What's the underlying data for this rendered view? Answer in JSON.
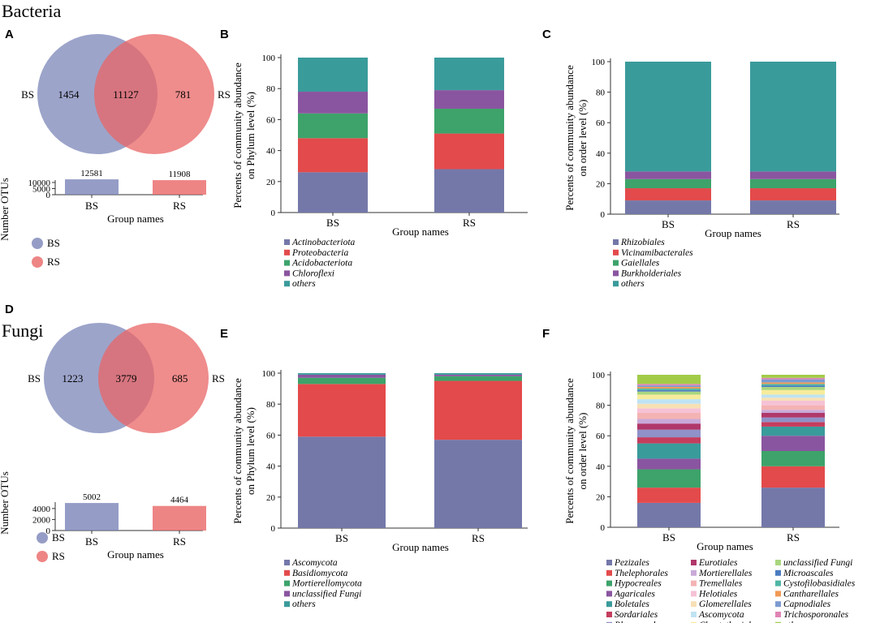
{
  "sections": {
    "bacteria": "Bacteria",
    "fungi": "Fungi"
  },
  "panels": {
    "A": "A",
    "B": "B",
    "C": "C",
    "D": "D",
    "E": "E",
    "F": "F"
  },
  "colors": {
    "BS": "#7b85b8",
    "RS": "#ea6666"
  },
  "chart_data": [
    {
      "panel": "A",
      "type": "venn_bar",
      "groups": [
        "BS",
        "RS"
      ],
      "venn": {
        "only_left": 1454,
        "shared": 11127,
        "only_right": 781
      },
      "bar": {
        "categories": [
          "BS",
          "RS"
        ],
        "values": [
          12581,
          11908
        ],
        "yticks": [
          0,
          5000,
          10000
        ],
        "ylim": [
          0,
          13000
        ]
      },
      "ylabel": "Number OTUs",
      "xlabel": "Group names",
      "legend": [
        "BS",
        "RS"
      ]
    },
    {
      "panel": "B",
      "type": "bar",
      "stacked": true,
      "categories": [
        "BS",
        "RS"
      ],
      "series": [
        {
          "name": "Actinobacteriota",
          "color": "#7478a9",
          "values": [
            26,
            28
          ]
        },
        {
          "name": "Proteobacteria",
          "color": "#e34a4b",
          "values": [
            22,
            23
          ]
        },
        {
          "name": "Acidobacteriota",
          "color": "#3da36a",
          "values": [
            16,
            16
          ]
        },
        {
          "name": "Chloroflexi",
          "color": "#8a55a0",
          "values": [
            14,
            12
          ]
        },
        {
          "name": "others",
          "color": "#3a9b9b",
          "values": [
            22,
            21
          ]
        }
      ],
      "ylabel": "Percents of community abundance on Phylum level (%)",
      "xlabel": "Group names",
      "ylim": [
        0,
        100
      ],
      "yticks": [
        0,
        20,
        40,
        60,
        80,
        100
      ]
    },
    {
      "panel": "C",
      "type": "bar",
      "stacked": true,
      "categories": [
        "BS",
        "RS"
      ],
      "series": [
        {
          "name": "Rhizobiales",
          "color": "#7478a9",
          "values": [
            9,
            9
          ]
        },
        {
          "name": "Vicinamibacterales",
          "color": "#e34a4b",
          "values": [
            8,
            8
          ]
        },
        {
          "name": "Gaiellales",
          "color": "#3da36a",
          "values": [
            6,
            6
          ]
        },
        {
          "name": "Burkholderiales",
          "color": "#8a55a0",
          "values": [
            5,
            5
          ]
        },
        {
          "name": "others",
          "color": "#3a9b9b",
          "values": [
            72,
            72
          ]
        }
      ],
      "ylabel": "Percents of community abundance on order level (%)",
      "xlabel": "Group names",
      "ylim": [
        0,
        100
      ],
      "yticks": [
        0,
        20,
        40,
        60,
        80,
        100
      ]
    },
    {
      "panel": "D",
      "type": "venn_bar",
      "groups": [
        "BS",
        "RS"
      ],
      "venn": {
        "only_left": 1223,
        "shared": 3779,
        "only_right": 685
      },
      "bar": {
        "categories": [
          "BS",
          "RS"
        ],
        "values": [
          5002,
          4464
        ],
        "yticks": [
          0,
          2000,
          4000
        ],
        "ylim": [
          0,
          5600
        ]
      },
      "ylabel": "Number OTUs",
      "xlabel": "Group names",
      "legend": [
        "BS",
        "RS"
      ]
    },
    {
      "panel": "E",
      "type": "bar",
      "stacked": true,
      "categories": [
        "BS",
        "RS"
      ],
      "series": [
        {
          "name": "Ascomycota",
          "color": "#7478a9",
          "values": [
            59,
            57
          ]
        },
        {
          "name": "Basidiomycota",
          "color": "#e34a4b",
          "values": [
            34,
            38
          ]
        },
        {
          "name": "Mortierellomycota",
          "color": "#3da36a",
          "values": [
            4,
            3
          ]
        },
        {
          "name": "unclassified Fungi",
          "color": "#8a55a0",
          "values": [
            2,
            1
          ]
        },
        {
          "name": "others",
          "color": "#3a9b9b",
          "values": [
            1,
            1
          ]
        }
      ],
      "ylabel": "Percents of community abundance on Phylum level (%)",
      "xlabel": "Group names",
      "ylim": [
        0,
        100
      ],
      "yticks": [
        0,
        20,
        40,
        60,
        80,
        100
      ]
    },
    {
      "panel": "F",
      "type": "bar",
      "stacked": true,
      "categories": [
        "BS",
        "RS"
      ],
      "series": [
        {
          "name": "Pezizales",
          "color": "#7478a9",
          "values": [
            16,
            26
          ]
        },
        {
          "name": "Thelephorales",
          "color": "#e34a4b",
          "values": [
            10,
            14
          ]
        },
        {
          "name": "Hypocreales",
          "color": "#3da36a",
          "values": [
            12,
            10
          ]
        },
        {
          "name": "Agaricales",
          "color": "#8a55a0",
          "values": [
            7,
            10
          ]
        },
        {
          "name": "Boletales",
          "color": "#3a9b9b",
          "values": [
            10,
            6
          ]
        },
        {
          "name": "Sordariales",
          "color": "#c43d5e",
          "values": [
            4,
            3
          ]
        },
        {
          "name": "Pleosporales",
          "color": "#8f91c8",
          "values": [
            5,
            3
          ]
        },
        {
          "name": "Eurotiales",
          "color": "#b0386a",
          "values": [
            4,
            3
          ]
        },
        {
          "name": "Mortierellales",
          "color": "#c9a9d9",
          "values": [
            3,
            2
          ]
        },
        {
          "name": "Tremellales",
          "color": "#f4b3b3",
          "values": [
            4,
            3
          ]
        },
        {
          "name": "Helotiales",
          "color": "#f6c2d6",
          "values": [
            3,
            3
          ]
        },
        {
          "name": "Glomerellales",
          "color": "#f7e0b5",
          "values": [
            3,
            2
          ]
        },
        {
          "name": "Ascomycota",
          "color": "#bfe3f3",
          "values": [
            3,
            2
          ]
        },
        {
          "name": "Chaetothyriales",
          "color": "#f7ec9c",
          "values": [
            3,
            3
          ]
        },
        {
          "name": "unclassified Fungi",
          "color": "#a9d67f",
          "values": [
            2,
            2
          ]
        },
        {
          "name": "Microascales",
          "color": "#4a7cc0",
          "values": [
            1,
            1
          ]
        },
        {
          "name": "Cystofilobasidiales",
          "color": "#4fb6a3",
          "values": [
            1,
            1
          ]
        },
        {
          "name": "Cantharellales",
          "color": "#f19a54",
          "values": [
            1,
            1
          ]
        },
        {
          "name": "Capnodiales",
          "color": "#7d9bd1",
          "values": [
            1,
            2
          ]
        },
        {
          "name": "Trichosporonales",
          "color": "#e084b5",
          "values": [
            1,
            1
          ]
        },
        {
          "name": "others",
          "color": "#a2cc48",
          "values": [
            6,
            2
          ]
        }
      ],
      "ylabel": "Percents of community abundance on order level (%)",
      "xlabel": "Group names",
      "ylim": [
        0,
        100
      ],
      "yticks": [
        0,
        20,
        40,
        60,
        80,
        100
      ]
    }
  ]
}
